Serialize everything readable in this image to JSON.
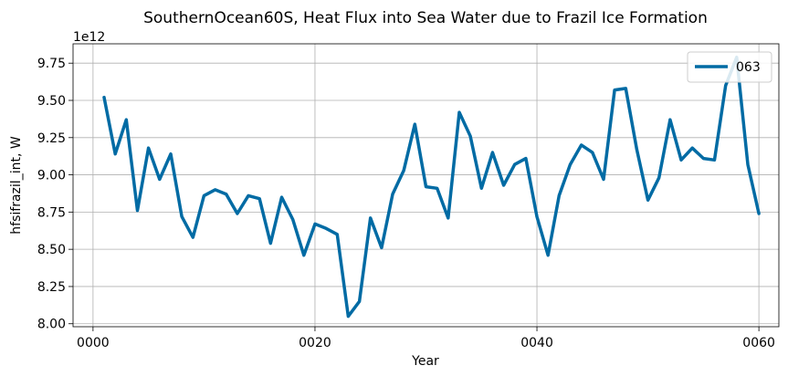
{
  "chart_data": {
    "type": "line",
    "title": "SouthernOcean60S, Heat Flux into Sea Water due to Frazil Ice Formation",
    "xlabel": "Year",
    "ylabel": "hfsifrazil_int, W",
    "y_offset_label": "1e12",
    "xlim": [
      -1.8,
      61.8
    ],
    "ylim": [
      7.98,
      9.88
    ],
    "x_ticks": [
      0,
      20,
      40,
      60
    ],
    "x_tick_labels": [
      "0000",
      "0020",
      "0040",
      "0060"
    ],
    "y_ticks": [
      8.0,
      8.25,
      8.5,
      8.75,
      9.0,
      9.25,
      9.5,
      9.75
    ],
    "y_tick_labels": [
      "8.00",
      "8.25",
      "8.50",
      "8.75",
      "9.00",
      "9.25",
      "9.50",
      "9.75"
    ],
    "grid": true,
    "legend_position": "top-right",
    "series": [
      {
        "name": "063",
        "color": "#006ba4",
        "x": [
          1,
          2,
          3,
          4,
          5,
          6,
          7,
          8,
          9,
          10,
          11,
          12,
          13,
          14,
          15,
          16,
          17,
          18,
          19,
          20,
          21,
          22,
          23,
          24,
          25,
          26,
          27,
          28,
          29,
          30,
          31,
          32,
          33,
          34,
          35,
          36,
          37,
          38,
          39,
          40,
          41,
          42,
          43,
          44,
          45,
          46,
          47,
          48,
          49,
          50,
          51,
          52,
          53,
          54,
          55,
          56,
          57,
          58,
          59,
          60
        ],
        "values": [
          9.52,
          9.14,
          9.37,
          8.76,
          9.18,
          8.97,
          9.14,
          8.72,
          8.58,
          8.86,
          8.9,
          8.87,
          8.74,
          8.86,
          8.84,
          8.54,
          8.85,
          8.7,
          8.46,
          8.67,
          8.64,
          8.6,
          8.05,
          8.15,
          8.71,
          8.51,
          8.87,
          9.03,
          9.34,
          8.92,
          8.91,
          8.71,
          9.42,
          9.26,
          8.91,
          9.15,
          8.93,
          9.07,
          9.11,
          8.72,
          8.46,
          8.86,
          9.07,
          9.2,
          9.15,
          8.97,
          9.57,
          9.58,
          9.17,
          8.83,
          8.98,
          9.37,
          9.1,
          9.18,
          9.11,
          9.1,
          9.6,
          9.79,
          9.07,
          8.74
        ]
      }
    ]
  }
}
